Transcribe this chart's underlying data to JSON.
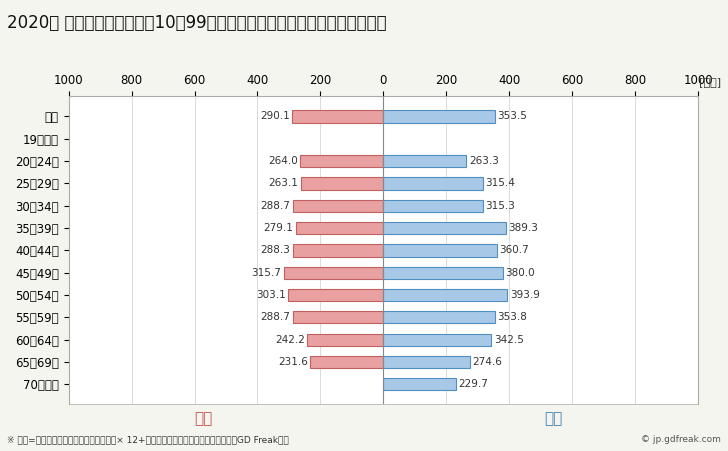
{
  "title": "2020年 民間企業（従業者数10〜99人）フルタイム労働者の男女別平均年収",
  "ylabel_unit": "[万円]",
  "categories": [
    "全体",
    "19歳以下",
    "20〜24歳",
    "25〜29歳",
    "30〜34歳",
    "35〜39歳",
    "40〜44歳",
    "45〜49歳",
    "50〜54歳",
    "55〜59歳",
    "60〜64歳",
    "65〜69歳",
    "70歳以上"
  ],
  "female_values": [
    290.1,
    0,
    264.0,
    263.1,
    288.7,
    279.1,
    288.3,
    315.7,
    303.1,
    288.7,
    242.2,
    231.6,
    0
  ],
  "male_values": [
    353.5,
    0,
    263.3,
    315.4,
    315.3,
    389.3,
    360.7,
    380.0,
    393.9,
    353.8,
    342.5,
    274.6,
    229.7
  ],
  "female_color": "#e8a0a0",
  "male_color": "#a8c8e8",
  "female_border_color": "#c06060",
  "male_border_color": "#5090c0",
  "xlim": 1000,
  "female_label": "女性",
  "male_label": "男性",
  "female_label_color": "#c05050",
  "male_label_color": "#4080b0",
  "footnote": "※ 年収=「きまって支給する現金給与額」× 12+「年間賞与その他特別給与額」としてGD Freak推計",
  "copyright": "© jp.gdfreak.com",
  "background_color": "#f5f5f0",
  "plot_bg_color": "#ffffff",
  "bar_height": 0.55,
  "title_fontsize": 12,
  "tick_fontsize": 8.5,
  "bar_label_fontsize": 7.5,
  "legend_fontsize": 11,
  "footnote_fontsize": 6.5
}
